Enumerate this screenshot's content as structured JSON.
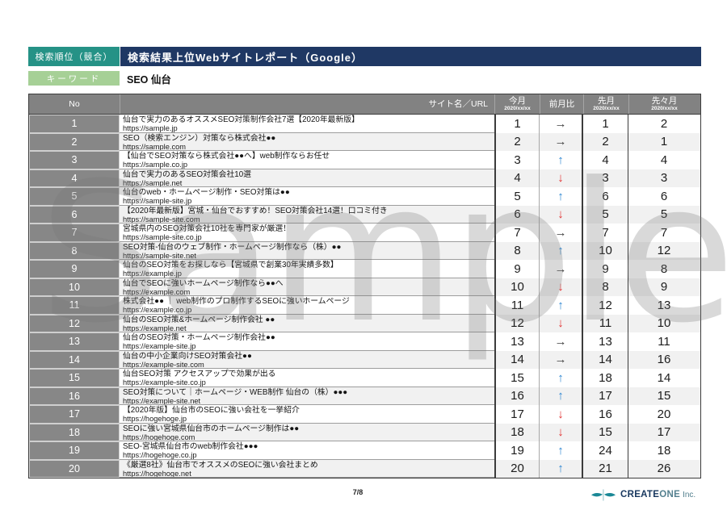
{
  "header": {
    "report_type": "検索順位（競合）",
    "title": "検索結果上位Webサイトレポート（Google）",
    "keyword_label": "キーワード",
    "keyword_value": "SEO 仙台"
  },
  "table": {
    "columns": {
      "no": "No",
      "site": "サイト名／URL",
      "current_month": "今月",
      "current_month_date": "2020/xx/xx",
      "trend": "前月比",
      "last_month": "先月",
      "last_month_date": "2020/xx/xx",
      "two_months_ago": "先々月",
      "two_months_ago_date": "2020/xx/xx"
    },
    "trend_glyphs": {
      "up": "↑",
      "down": "↓",
      "same": "→"
    },
    "trend_colors": {
      "up": "#2e86d1",
      "down": "#e03131",
      "same": "#3f3f3f"
    },
    "rows": [
      {
        "no": 1,
        "title": "仙台で実力のあるオススメSEO対策制作会社7選【2020年最新版】",
        "url": "https://sample.jp",
        "current": 1,
        "trend": "same",
        "last": 1,
        "two_ago": 2
      },
      {
        "no": 2,
        "title": "SEO（検索エンジン）対策なら株式会社●●",
        "url": "https://sample.com",
        "current": 2,
        "trend": "same",
        "last": 2,
        "two_ago": 1
      },
      {
        "no": 3,
        "title": "【仙台でSEO対策なら株式会社●●へ】web制作ならお任せ",
        "url": "https://sample.co.jp",
        "current": 3,
        "trend": "up",
        "last": 4,
        "two_ago": 4
      },
      {
        "no": 4,
        "title": "仙台で実力のあるSEO対策会社10選",
        "url": "https://sample.net",
        "current": 4,
        "trend": "down",
        "last": 3,
        "two_ago": 3
      },
      {
        "no": 5,
        "title": "仙台のweb・ホームページ制作・SEO対策は●●",
        "url": "https://sample-site.jp",
        "current": 5,
        "trend": "up",
        "last": 6,
        "two_ago": 6
      },
      {
        "no": 6,
        "title": "【2020年最新版】宮城・仙台でおすすめ！SEO対策会社14選！口コミ付き",
        "url": "https://sample-site.com",
        "current": 6,
        "trend": "down",
        "last": 5,
        "two_ago": 5
      },
      {
        "no": 7,
        "title": "宮城県内のSEO対策会社10社を専門家が厳選！",
        "url": "https://sample-site.co.jp",
        "current": 7,
        "trend": "same",
        "last": 7,
        "two_ago": 7
      },
      {
        "no": 8,
        "title": "SEO対策-仙台のウェブ制作・ホームページ制作なら（株）●●",
        "url": "https://sample-site.net",
        "current": 8,
        "trend": "up",
        "last": 10,
        "two_ago": 12
      },
      {
        "no": 9,
        "title": "仙台のSEO対策をお探しなら【宮城県で創業30年実績多数】",
        "url": "https://example.jp",
        "current": 9,
        "trend": "same",
        "last": 9,
        "two_ago": 8
      },
      {
        "no": 10,
        "title": "仙台でSEOに強いホームページ制作なら●●へ",
        "url": "https://example.com",
        "current": 10,
        "trend": "down",
        "last": 8,
        "two_ago": 9
      },
      {
        "no": 11,
        "title": "株式会社●● ｜ web制作のプロ制作するSEOに強いホームページ",
        "url": "https://example.co.jp",
        "current": 11,
        "trend": "up",
        "last": 12,
        "two_ago": 13
      },
      {
        "no": 12,
        "title": "仙台のSEO対策&ホームページ制作会社 ●●",
        "url": "https://example.net",
        "current": 12,
        "trend": "down",
        "last": 11,
        "two_ago": 10
      },
      {
        "no": 13,
        "title": "仙台のSEO対策・ホームページ制作会社●●",
        "url": "https://example-site.jp",
        "current": 13,
        "trend": "same",
        "last": 13,
        "two_ago": 11
      },
      {
        "no": 14,
        "title": "仙台の中小企業向けSEO対策会社●●",
        "url": "https://example-site.com",
        "current": 14,
        "trend": "same",
        "last": 14,
        "two_ago": 16
      },
      {
        "no": 15,
        "title": "仙台SEO対策 アクセスアップで効果が出る",
        "url": "https://example-site.co.jp",
        "current": 15,
        "trend": "up",
        "last": 18,
        "two_ago": 14
      },
      {
        "no": 16,
        "title": "SEO対策について｜ホームページ・WEB制作 仙台の（株）●●●",
        "url": "https://example-site.net",
        "current": 16,
        "trend": "up",
        "last": 17,
        "two_ago": 15
      },
      {
        "no": 17,
        "title": "【2020年版】仙台市のSEOに強い会社を一挙紹介",
        "url": "https://hogehoge.jp",
        "current": 17,
        "trend": "down",
        "last": 16,
        "two_ago": 20
      },
      {
        "no": 18,
        "title": "SEOに強い宮城県仙台市のホームページ制作は●●",
        "url": "https://hogehoge.com",
        "current": 18,
        "trend": "down",
        "last": 15,
        "two_ago": 17
      },
      {
        "no": 19,
        "title": "SEO-宮城県仙台市のweb制作会社●●●",
        "url": "https://hogehoge.co.jp",
        "current": 19,
        "trend": "up",
        "last": 24,
        "two_ago": 18
      },
      {
        "no": 20,
        "title": "《厳選8社》仙台市でオススメのSEOに強い会社まとめ",
        "url": "https://hogehoge.net",
        "current": 20,
        "trend": "up",
        "last": 21,
        "two_ago": 26
      }
    ]
  },
  "watermark": {
    "text": "Sample"
  },
  "footer": {
    "page_number": "7/8",
    "logo_text_bold": "CREATE",
    "logo_text_light": "ONE",
    "logo_text_suffix": "Inc."
  },
  "colors": {
    "teal_badge": "#259286",
    "navy_title": "#1f3864",
    "green_badge": "#a6d096",
    "header_gray": "#828282",
    "no_cell_gray": "#878787",
    "row_stripe": "#f1f1f1",
    "logo_teal": "#1a8896"
  }
}
